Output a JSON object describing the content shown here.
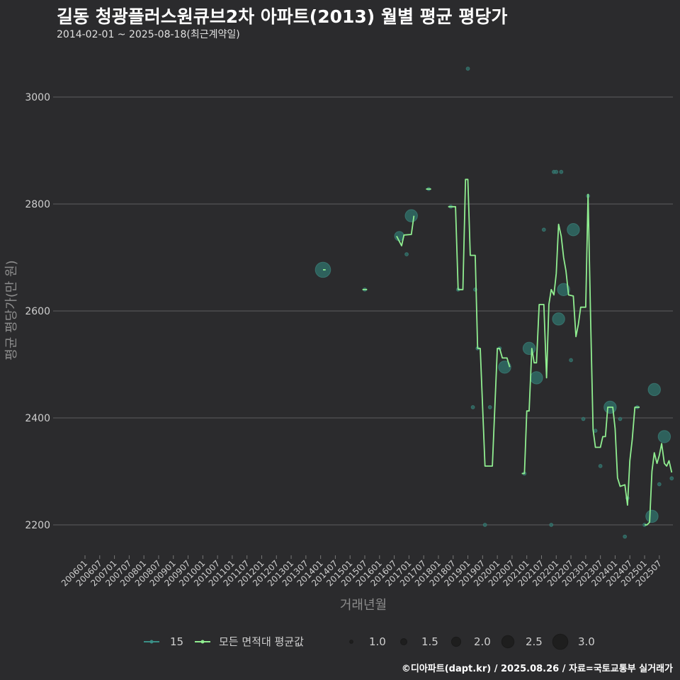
{
  "title": "길동 청광플러스원큐브2차 아파트(2013) 월별 평균 평당가",
  "subtitle": "2014-02-01 ~ 2025-08-18(최근계약일)",
  "caption": "©디아파트(dapt.kr) / 2025.08.26 / 자료=국토교통부 실거래가",
  "colors": {
    "background": "#2b2b2d",
    "grid": "#5e5e60",
    "series_line": "#90ee90",
    "bubble": "#2f6b65",
    "bubble_edge": "#3f8c84",
    "axis_text": "#cfcfcf",
    "axis_title": "#8c8c8c"
  },
  "chart_data": {
    "type": "line",
    "xlabel": "거래년월",
    "ylabel": "평균 평당가(만 원)",
    "ylim": [
      2150,
      3060
    ],
    "yticks": [
      2200,
      2400,
      2600,
      2800,
      3000
    ],
    "xticks": [
      "200601",
      "200607",
      "200701",
      "200707",
      "200801",
      "200807",
      "200901",
      "200907",
      "201001",
      "201007",
      "201101",
      "201107",
      "201201",
      "201207",
      "201301",
      "201307",
      "201401",
      "201407",
      "201501",
      "201507",
      "201601",
      "201607",
      "201701",
      "201707",
      "201801",
      "201807",
      "201901",
      "201907",
      "202001",
      "202007",
      "202101",
      "202107",
      "202201",
      "202207",
      "202301",
      "202307",
      "202401",
      "202407",
      "202501",
      "202507"
    ],
    "legend": {
      "series": [
        {
          "label": "15",
          "kind": "area-15"
        },
        {
          "label": "모든 면적대 평균값",
          "kind": "all-average"
        }
      ],
      "size_title": "",
      "sizes": [
        {
          "label": "1.0",
          "value": 1.0
        },
        {
          "label": "1.5",
          "value": 1.5
        },
        {
          "label": "2.0",
          "value": 2.0
        },
        {
          "label": "2.5",
          "value": 2.5
        },
        {
          "label": "3.0",
          "value": 3.0
        }
      ]
    },
    "line_segments": [
      [
        [
          2014.08,
          2677
        ],
        [
          2014.17,
          2677
        ]
      ],
      [
        [
          2015.42,
          2640
        ],
        [
          2015.58,
          2640
        ]
      ],
      [
        [
          2016.58,
          2740
        ],
        [
          2016.75,
          2722
        ],
        [
          2016.83,
          2742
        ],
        [
          2017.08,
          2743
        ],
        [
          2017.17,
          2778
        ]
      ],
      [
        [
          2017.58,
          2828
        ],
        [
          2017.75,
          2828
        ]
      ],
      [
        [
          2018.33,
          2795
        ],
        [
          2018.58,
          2795
        ],
        [
          2018.67,
          2640
        ],
        [
          2018.83,
          2640
        ],
        [
          2018.92,
          2846
        ],
        [
          2019.0,
          2846
        ],
        [
          2019.08,
          2704
        ],
        [
          2019.25,
          2704
        ],
        [
          2019.33,
          2530
        ],
        [
          2019.42,
          2530
        ],
        [
          2019.58,
          2310
        ],
        [
          2019.83,
          2310
        ],
        [
          2020.0,
          2530
        ],
        [
          2020.08,
          2530
        ],
        [
          2020.17,
          2512
        ],
        [
          2020.33,
          2512
        ],
        [
          2020.42,
          2495
        ]
      ],
      [
        [
          2020.83,
          2296
        ],
        [
          2020.92,
          2296
        ],
        [
          2021.0,
          2413
        ],
        [
          2021.08,
          2413
        ],
        [
          2021.17,
          2530
        ],
        [
          2021.25,
          2503
        ],
        [
          2021.33,
          2503
        ],
        [
          2021.42,
          2612
        ],
        [
          2021.58,
          2612
        ],
        [
          2021.67,
          2475
        ],
        [
          2021.75,
          2612
        ],
        [
          2021.83,
          2640
        ],
        [
          2021.92,
          2630
        ],
        [
          2022.0,
          2670
        ],
        [
          2022.08,
          2762
        ],
        [
          2022.17,
          2740
        ],
        [
          2022.25,
          2700
        ],
        [
          2022.33,
          2675
        ],
        [
          2022.42,
          2630
        ],
        [
          2022.58,
          2628
        ],
        [
          2022.67,
          2552
        ],
        [
          2022.75,
          2575
        ],
        [
          2022.83,
          2607
        ],
        [
          2022.92,
          2607
        ],
        [
          2023.0,
          2607
        ],
        [
          2023.08,
          2818
        ],
        [
          2023.17,
          2580
        ],
        [
          2023.25,
          2378
        ],
        [
          2023.33,
          2345
        ],
        [
          2023.5,
          2345
        ],
        [
          2023.58,
          2365
        ],
        [
          2023.67,
          2365
        ],
        [
          2023.75,
          2420
        ],
        [
          2023.92,
          2420
        ],
        [
          2024.0,
          2380
        ],
        [
          2024.08,
          2288
        ],
        [
          2024.17,
          2272
        ],
        [
          2024.33,
          2275
        ],
        [
          2024.42,
          2237
        ],
        [
          2024.5,
          2320
        ],
        [
          2024.58,
          2360
        ],
        [
          2024.67,
          2420
        ],
        [
          2024.83,
          2420
        ]
      ],
      [
        [
          2025.0,
          2200
        ],
        [
          2025.08,
          2200
        ],
        [
          2025.17,
          2205
        ],
        [
          2025.25,
          2300
        ],
        [
          2025.33,
          2335
        ],
        [
          2025.42,
          2315
        ],
        [
          2025.5,
          2330
        ],
        [
          2025.58,
          2352
        ],
        [
          2025.67,
          2315
        ],
        [
          2025.75,
          2310
        ],
        [
          2025.83,
          2320
        ],
        [
          2025.92,
          2298
        ]
      ]
    ],
    "bubbles": [
      {
        "x": 2014.08,
        "y": 2677,
        "size": 3.0
      },
      {
        "x": 2015.5,
        "y": 2640,
        "size": 1.0
      },
      {
        "x": 2016.67,
        "y": 2740,
        "size": 2.0
      },
      {
        "x": 2016.92,
        "y": 2706,
        "size": 1.0
      },
      {
        "x": 2017.08,
        "y": 2778,
        "size": 2.5
      },
      {
        "x": 2017.67,
        "y": 2828,
        "size": 1.0
      },
      {
        "x": 2018.42,
        "y": 2795,
        "size": 1.0
      },
      {
        "x": 2018.67,
        "y": 2640,
        "size": 1.0
      },
      {
        "x": 2019.0,
        "y": 3053,
        "size": 1.0
      },
      {
        "x": 2019.17,
        "y": 2420,
        "size": 1.0
      },
      {
        "x": 2019.25,
        "y": 2640,
        "size": 1.0
      },
      {
        "x": 2019.33,
        "y": 2530,
        "size": 1.0
      },
      {
        "x": 2019.58,
        "y": 2200,
        "size": 1.0
      },
      {
        "x": 2019.75,
        "y": 2420,
        "size": 1.0
      },
      {
        "x": 2020.08,
        "y": 2530,
        "size": 1.0
      },
      {
        "x": 2020.25,
        "y": 2495,
        "size": 2.5
      },
      {
        "x": 2020.92,
        "y": 2296,
        "size": 1.0
      },
      {
        "x": 2021.08,
        "y": 2530,
        "size": 2.5
      },
      {
        "x": 2021.33,
        "y": 2475,
        "size": 2.5
      },
      {
        "x": 2021.58,
        "y": 2752,
        "size": 1.0
      },
      {
        "x": 2021.83,
        "y": 2200,
        "size": 1.0
      },
      {
        "x": 2021.92,
        "y": 2860,
        "size": 1.0
      },
      {
        "x": 2022.0,
        "y": 2860,
        "size": 1.0
      },
      {
        "x": 2022.08,
        "y": 2585,
        "size": 2.5
      },
      {
        "x": 2022.17,
        "y": 2860,
        "size": 1.0
      },
      {
        "x": 2022.25,
        "y": 2640,
        "size": 2.5
      },
      {
        "x": 2022.5,
        "y": 2508,
        "size": 1.0
      },
      {
        "x": 2022.58,
        "y": 2752,
        "size": 2.5
      },
      {
        "x": 2022.92,
        "y": 2398,
        "size": 1.0
      },
      {
        "x": 2023.08,
        "y": 2815,
        "size": 1.0
      },
      {
        "x": 2023.33,
        "y": 2376,
        "size": 1.0
      },
      {
        "x": 2023.5,
        "y": 2310,
        "size": 1.0
      },
      {
        "x": 2023.83,
        "y": 2420,
        "size": 2.5
      },
      {
        "x": 2024.17,
        "y": 2398,
        "size": 1.0
      },
      {
        "x": 2024.33,
        "y": 2178,
        "size": 1.0
      },
      {
        "x": 2024.42,
        "y": 2250,
        "size": 1.0
      },
      {
        "x": 2024.75,
        "y": 2420,
        "size": 1.0
      },
      {
        "x": 2025.0,
        "y": 2200,
        "size": 1.0
      },
      {
        "x": 2025.25,
        "y": 2216,
        "size": 2.5
      },
      {
        "x": 2025.33,
        "y": 2453,
        "size": 2.5
      },
      {
        "x": 2025.5,
        "y": 2276,
        "size": 1.0
      },
      {
        "x": 2025.67,
        "y": 2365,
        "size": 2.5
      },
      {
        "x": 2025.92,
        "y": 2287,
        "size": 1.0
      }
    ]
  }
}
